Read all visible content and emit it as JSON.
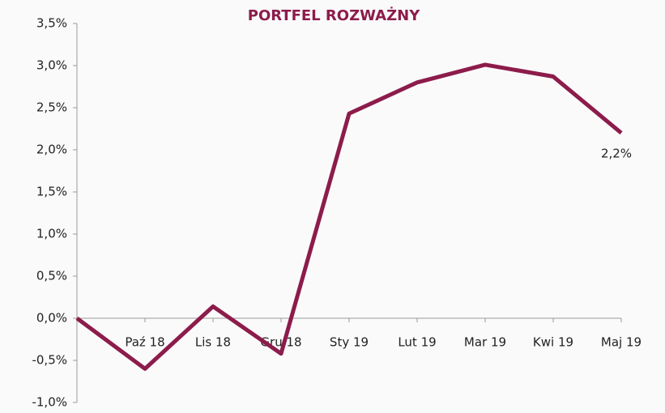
{
  "chart_data": {
    "type": "line",
    "title": "PORTFEL ROZWAŻNY",
    "categories": [
      null,
      "Paź 18",
      "Lis 18",
      "Gru 18",
      "Sty 19",
      "Lut 19",
      "Mar 19",
      "Kwi 19",
      "Maj 19"
    ],
    "series": [
      {
        "name": null,
        "color": "#8c1c4b",
        "values": [
          0,
          -0.6,
          0.14,
          -0.42,
          2.43,
          2.8,
          3.01,
          2.87,
          2.2
        ],
        "value_labels": [
          null,
          null,
          null,
          null,
          null,
          null,
          null,
          null,
          "2,2%"
        ]
      }
    ],
    "ylim": [
      -1.0,
      3.5
    ],
    "yticks": [
      {
        "value": -1.0,
        "label": "-1,0%"
      },
      {
        "value": -0.5,
        "label": "-0,5%"
      },
      {
        "value": 0,
        "label": "0,0%"
      },
      {
        "value": 0.5,
        "label": "0,5%"
      },
      {
        "value": 1.0,
        "label": "1,0%"
      },
      {
        "value": 1.5,
        "label": "1,5%"
      },
      {
        "value": 2.0,
        "label": "2,0%"
      },
      {
        "value": 2.5,
        "label": "2,5%"
      },
      {
        "value": 3.0,
        "label": "3,0%"
      },
      {
        "value": 3.5,
        "label": "3,5%"
      }
    ]
  }
}
